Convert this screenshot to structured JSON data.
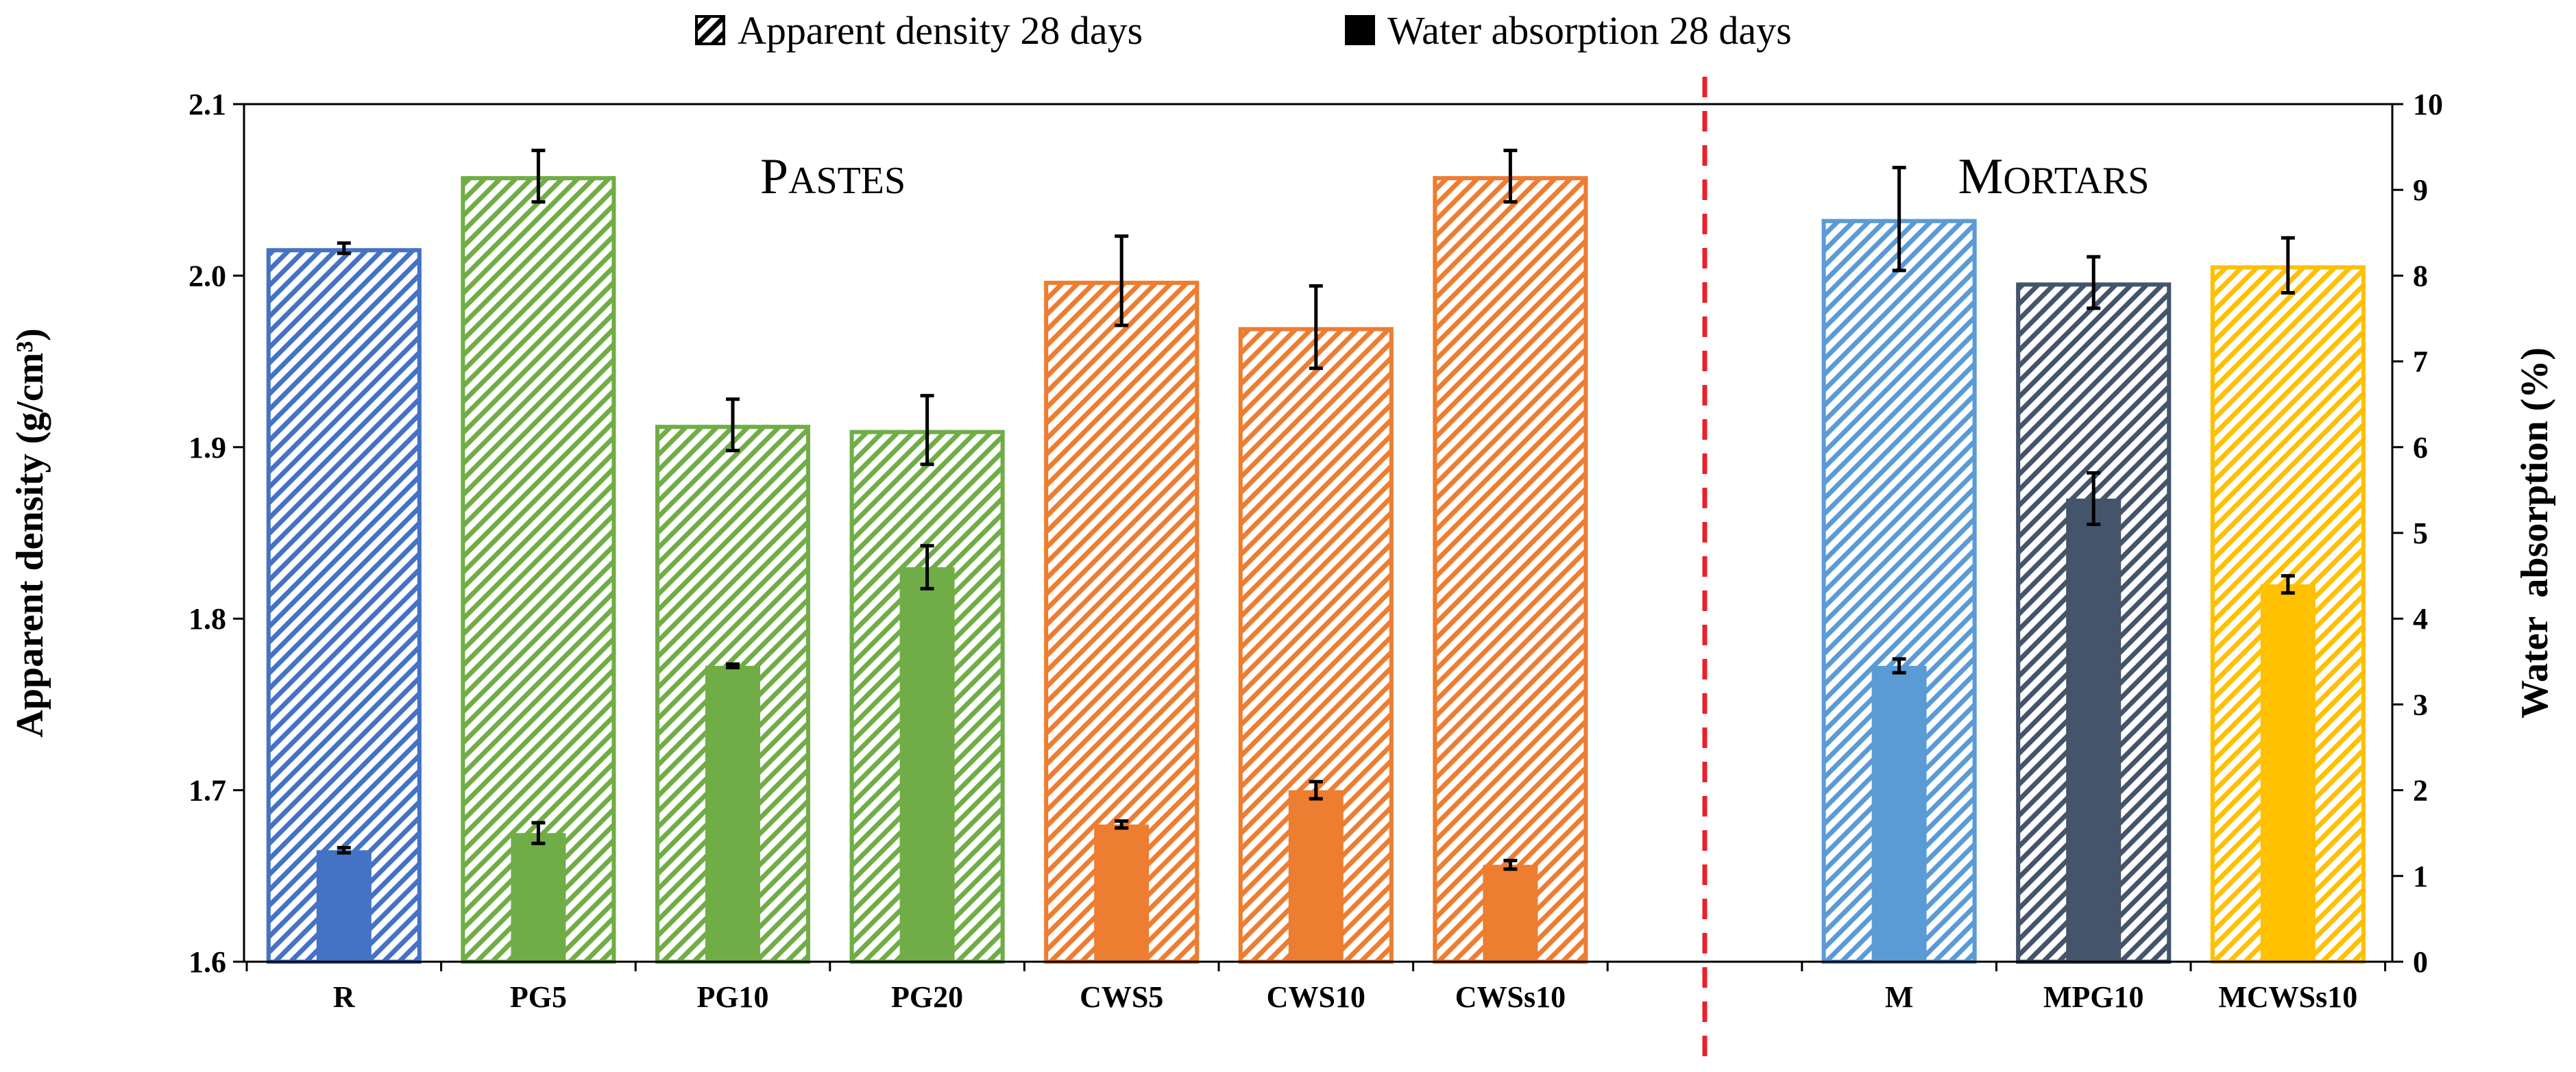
{
  "chart_data": {
    "type": "bar",
    "legend": {
      "position": "top-center",
      "entries": [
        "Apparent density 28 days",
        "Water absorption 28 days"
      ]
    },
    "categories": [
      "R",
      "PG5",
      "PG10",
      "PG20",
      "CWS5",
      "CWS10",
      "CWSs10",
      "",
      "M",
      "MPG10",
      "MCWSs10"
    ],
    "colors": [
      "#4472C4",
      "#70AD47",
      "#70AD47",
      "#70AD47",
      "#ED7D31",
      "#ED7D31",
      "#ED7D31",
      null,
      "#5B9BD5",
      "#44546A",
      "#FFC000"
    ],
    "series": [
      {
        "name": "Apparent density 28 days",
        "axis": "left",
        "style": "hatched",
        "values": [
          2.016,
          2.058,
          1.913,
          1.91,
          1.997,
          1.97,
          2.058,
          null,
          2.033,
          1.996,
          2.006
        ],
        "errors": [
          0.003,
          0.015,
          0.015,
          0.02,
          0.026,
          0.024,
          0.015,
          null,
          0.03,
          0.015,
          0.016
        ]
      },
      {
        "name": "Water absorption 28 days",
        "axis": "right",
        "style": "solid",
        "values": [
          1.3,
          1.5,
          3.45,
          4.6,
          1.6,
          2.0,
          1.13,
          null,
          3.45,
          5.4,
          4.4
        ],
        "errors": [
          0.03,
          0.12,
          0.02,
          0.25,
          0.04,
          0.1,
          0.05,
          null,
          0.08,
          0.3,
          0.1
        ]
      }
    ],
    "left_axis": {
      "label": "Apparent density (g/cm³)",
      "ylim": [
        1.6,
        2.1
      ],
      "ticks": [
        "1.6",
        "1.7",
        "1.8",
        "1.9",
        "2.0",
        "2.1"
      ]
    },
    "right_axis": {
      "label": "Water  absorption (%)",
      "ylim": [
        0,
        10
      ],
      "ticks": [
        "0",
        "1",
        "2",
        "3",
        "4",
        "5",
        "6",
        "7",
        "8",
        "9",
        "10"
      ]
    },
    "annotations": {
      "group_left": {
        "first": "P",
        "rest": "ASTES"
      },
      "group_right": {
        "first": "M",
        "rest": "ORTARS"
      },
      "divider": "dashed red vertical line between pastes and mortars"
    },
    "grid": false
  }
}
